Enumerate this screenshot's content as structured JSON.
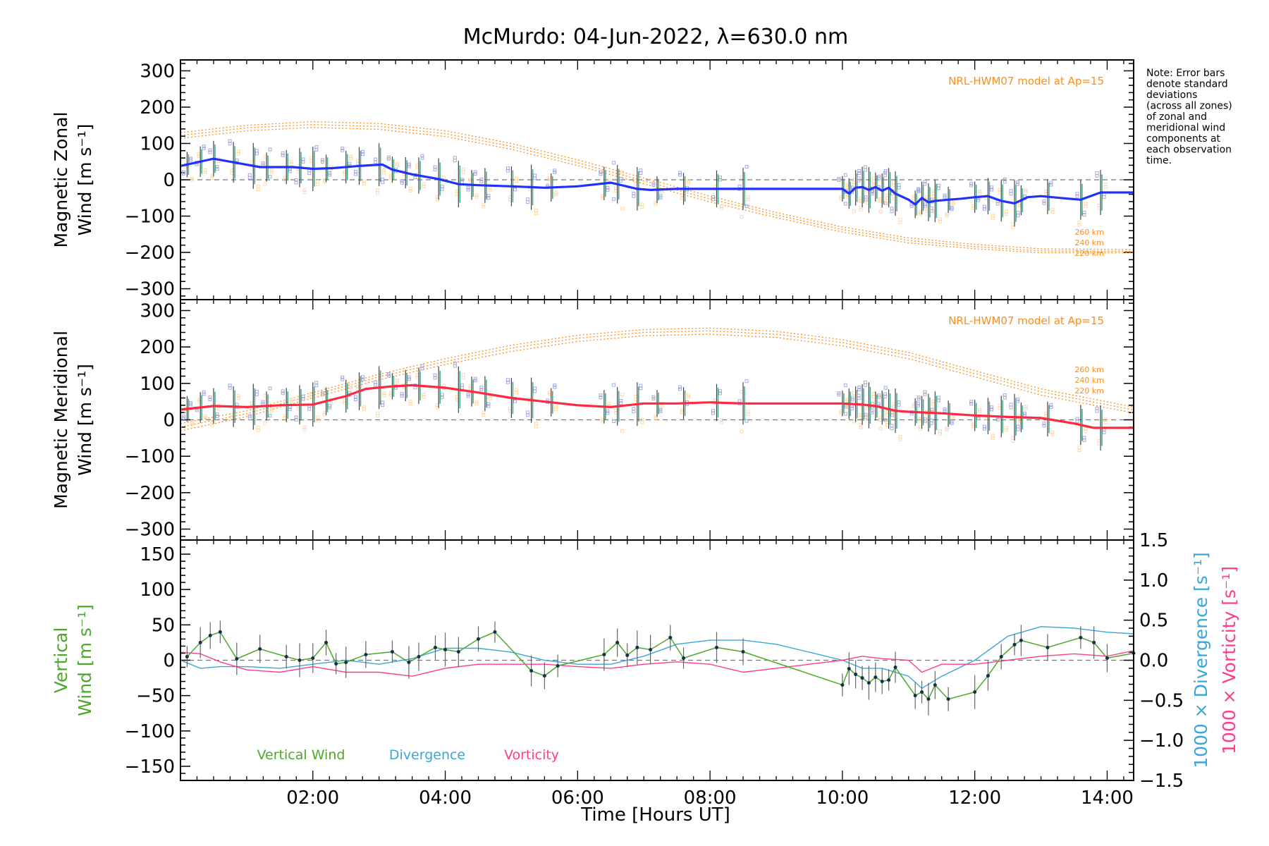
{
  "title": "McMurdo: 04-Jun-2022, λ=630.0 nm",
  "xaxis": {
    "label": "Time [Hours UT]",
    "ticks": [
      {
        "h": 2,
        "label": "02:00"
      },
      {
        "h": 4,
        "label": "04:00"
      },
      {
        "h": 6,
        "label": "06:00"
      },
      {
        "h": 8,
        "label": "08:00"
      },
      {
        "h": 10,
        "label": "10:00"
      },
      {
        "h": 12,
        "label": "12:00"
      },
      {
        "h": 14,
        "label": "14:00"
      }
    ]
  },
  "note": [
    "Note: Error bars",
    "denote standard",
    "deviations",
    "(across all zones)",
    "of zonal and",
    "meridional wind",
    "components at",
    "each observation",
    "time."
  ],
  "colors": {
    "zonal": "#2030ff",
    "meridional": "#ff2840",
    "model": "#ff8c1a",
    "zone_points": "#a8a8dc",
    "light_points": "#ffd9a8",
    "vertical": "#4ca82a",
    "divergence": "#3aa6d8",
    "vorticity": "#ff3c8c"
  },
  "chart_data": [
    {
      "type": "line",
      "panel": "zonal",
      "ylabel_lines": [
        "Magnetic Zonal",
        "Wind [m s⁻¹]"
      ],
      "ylim": [
        -330,
        330
      ],
      "xlim": [
        0,
        14.4
      ],
      "yticks": [
        "300",
        "200",
        "100",
        "0",
        "−100",
        "−200",
        "−300"
      ],
      "model_label": "NRL-HWM07 model at Ap=15",
      "model_altitudes": [
        "260 km",
        "240 km",
        "220 km"
      ],
      "series": [
        {
          "role": "mean",
          "x": [
            0,
            0.5,
            1.2,
            1.7,
            2.0,
            2.3,
            2.7,
            3.05,
            3.2,
            3.5,
            3.9,
            4.2,
            4.5,
            5.0,
            5.5,
            6.0,
            6.5,
            6.9,
            7.1,
            7.5,
            8.0,
            8.5,
            9.0,
            9.5,
            10.0,
            10.1,
            10.2,
            10.3,
            10.4,
            10.5,
            10.6,
            10.7,
            10.8,
            11.0,
            11.1,
            11.2,
            11.3,
            11.4,
            11.6,
            11.8,
            12.0,
            12.2,
            12.4,
            12.6,
            12.8,
            13.0,
            13.3,
            13.6,
            13.9,
            14.4
          ],
          "values": [
            38,
            58,
            35,
            35,
            30,
            32,
            38,
            42,
            28,
            15,
            2,
            -12,
            -15,
            -18,
            -22,
            -18,
            -8,
            -25,
            -28,
            -25,
            -25,
            -25,
            -25,
            -25,
            -25,
            -38,
            -22,
            -20,
            -28,
            -20,
            -30,
            -22,
            -38,
            -55,
            -68,
            -50,
            -62,
            -58,
            -55,
            -52,
            -48,
            -45,
            -58,
            -65,
            -48,
            -45,
            -50,
            -55,
            -35,
            -35
          ]
        },
        {
          "role": "model",
          "x": [
            0,
            1,
            2,
            3,
            4,
            5,
            6,
            7,
            8,
            9,
            10,
            11,
            12,
            13,
            14.4
          ],
          "values": [
            130,
            150,
            160,
            155,
            135,
            100,
            55,
            5,
            -45,
            -90,
            -130,
            -160,
            -178,
            -190,
            -192
          ]
        },
        {
          "role": "model",
          "x": [
            0,
            1,
            2,
            3,
            4,
            5,
            6,
            7,
            8,
            9,
            10,
            11,
            12,
            13,
            14.4
          ],
          "values": [
            122,
            143,
            152,
            147,
            127,
            92,
            47,
            -3,
            -53,
            -97,
            -137,
            -167,
            -184,
            -196,
            -197
          ]
        },
        {
          "role": "model",
          "x": [
            0,
            1,
            2,
            3,
            4,
            5,
            6,
            7,
            8,
            9,
            10,
            11,
            12,
            13,
            14.4
          ],
          "values": [
            114,
            135,
            144,
            139,
            119,
            84,
            39,
            -11,
            -61,
            -104,
            -144,
            -174,
            -190,
            -201,
            -201
          ]
        }
      ],
      "obs_times": [
        0.1,
        0.3,
        0.5,
        0.8,
        1.1,
        1.3,
        1.6,
        1.8,
        2.0,
        2.2,
        2.5,
        2.7,
        3.0,
        3.2,
        3.4,
        3.6,
        3.9,
        4.2,
        4.4,
        4.6,
        5.0,
        5.3,
        5.6,
        6.4,
        6.6,
        6.9,
        7.2,
        7.6,
        8.1,
        8.5,
        10.0,
        10.1,
        10.2,
        10.3,
        10.4,
        10.5,
        10.6,
        10.7,
        10.8,
        11.1,
        11.2,
        11.3,
        11.4,
        11.6,
        12.0,
        12.2,
        12.4,
        12.6,
        12.7,
        13.1,
        13.6,
        13.9
      ]
    },
    {
      "type": "line",
      "panel": "meridional",
      "ylabel_lines": [
        "Magnetic Meridional",
        "Wind [m s⁻¹]"
      ],
      "ylim": [
        -330,
        330
      ],
      "xlim": [
        0,
        14.4
      ],
      "yticks": [
        "300",
        "200",
        "100",
        "0",
        "−100",
        "−200",
        "−300"
      ],
      "model_label": "NRL-HWM07 model at Ap=15",
      "model_altitudes": [
        "260 km",
        "240 km",
        "220 km"
      ],
      "series": [
        {
          "role": "mean",
          "x": [
            0,
            0.5,
            1.0,
            1.5,
            2.0,
            2.5,
            2.8,
            3.2,
            3.5,
            4.0,
            4.5,
            5.0,
            5.5,
            6.0,
            6.5,
            7.0,
            7.5,
            8.0,
            8.5,
            9.0,
            9.5,
            10.0,
            10.3,
            10.5,
            10.8,
            11.0,
            11.5,
            12.0,
            12.5,
            13.0,
            13.5,
            13.8,
            14.4
          ],
          "values": [
            28,
            38,
            35,
            40,
            42,
            65,
            85,
            92,
            95,
            88,
            75,
            60,
            50,
            40,
            35,
            45,
            45,
            48,
            45,
            45,
            45,
            45,
            42,
            38,
            25,
            22,
            18,
            12,
            8,
            5,
            -10,
            -22,
            -22
          ]
        },
        {
          "role": "model",
          "x": [
            0,
            1,
            2,
            3,
            4,
            5,
            6,
            7,
            8,
            9,
            10,
            11,
            12,
            13,
            14.4
          ],
          "values": [
            -10,
            25,
            75,
            125,
            168,
            205,
            232,
            248,
            252,
            243,
            220,
            185,
            135,
            85,
            35
          ]
        },
        {
          "role": "model",
          "x": [
            0,
            1,
            2,
            3,
            4,
            5,
            6,
            7,
            8,
            9,
            10,
            11,
            12,
            13,
            14.4
          ],
          "values": [
            -20,
            17,
            68,
            118,
            160,
            197,
            224,
            240,
            244,
            235,
            212,
            177,
            127,
            77,
            27
          ]
        },
        {
          "role": "model",
          "x": [
            0,
            1,
            2,
            3,
            4,
            5,
            6,
            7,
            8,
            9,
            10,
            11,
            12,
            13,
            14.4
          ],
          "values": [
            -30,
            9,
            60,
            110,
            152,
            188,
            215,
            231,
            235,
            226,
            203,
            168,
            118,
            68,
            19
          ]
        }
      ],
      "obs_times": [
        0.1,
        0.3,
        0.5,
        0.8,
        1.1,
        1.3,
        1.6,
        1.8,
        2.0,
        2.2,
        2.5,
        2.7,
        3.0,
        3.2,
        3.4,
        3.6,
        3.9,
        4.2,
        4.4,
        4.6,
        5.0,
        5.3,
        5.6,
        6.4,
        6.6,
        6.9,
        7.2,
        7.6,
        8.1,
        8.5,
        10.0,
        10.1,
        10.2,
        10.3,
        10.4,
        10.5,
        10.6,
        10.7,
        10.8,
        11.1,
        11.2,
        11.3,
        11.4,
        11.6,
        12.0,
        12.2,
        12.4,
        12.6,
        12.7,
        13.1,
        13.6,
        13.9
      ]
    },
    {
      "type": "line",
      "panel": "vertical",
      "ylabel_lines": [
        "Vertical",
        "Wind [m s⁻¹]"
      ],
      "ylim": [
        -170,
        170
      ],
      "xlim": [
        0,
        14.4
      ],
      "yticks": [
        "150",
        "100",
        "50",
        "0",
        "−50",
        "−100",
        "−150"
      ],
      "right_axis": {
        "ylim": [
          -1.5,
          1.5
        ],
        "ticks": [
          "1.5",
          "1.0",
          "0.5",
          "0.0",
          "−0.5",
          "−1.0",
          "−1.5"
        ],
        "label_divergence": "1000 × Divergence [s⁻¹]",
        "label_vorticity": "1000 × Vorticity [s⁻¹]"
      },
      "legend": [
        "Vertical Wind",
        "Divergence",
        "Vorticity"
      ],
      "series": [
        {
          "name": "Vertical Wind",
          "x": [
            0.1,
            0.3,
            0.45,
            0.6,
            0.85,
            1.2,
            1.6,
            1.8,
            2.0,
            2.2,
            2.35,
            2.5,
            2.8,
            3.2,
            3.45,
            3.6,
            3.85,
            4.0,
            4.2,
            4.5,
            4.75,
            5.3,
            5.5,
            5.7,
            6.4,
            6.6,
            6.75,
            6.9,
            7.1,
            7.4,
            7.6,
            8.1,
            8.5,
            10.0,
            10.1,
            10.2,
            10.3,
            10.4,
            10.5,
            10.6,
            10.7,
            10.8,
            11.1,
            11.2,
            11.3,
            11.4,
            11.6,
            12.0,
            12.2,
            12.4,
            12.6,
            12.7,
            13.1,
            13.6,
            13.8,
            14.0,
            14.4
          ],
          "values": [
            5,
            25,
            35,
            40,
            2,
            16,
            5,
            0,
            3,
            25,
            -5,
            -3,
            8,
            12,
            -3,
            5,
            18,
            15,
            12,
            30,
            40,
            -15,
            -22,
            -8,
            8,
            25,
            7,
            18,
            15,
            32,
            3,
            18,
            12,
            -35,
            -12,
            -20,
            -25,
            -32,
            -24,
            -30,
            -28,
            -10,
            -50,
            -45,
            -55,
            -35,
            -55,
            -45,
            -22,
            5,
            22,
            28,
            18,
            32,
            25,
            3,
            10
          ]
        },
        {
          "name": "Divergence",
          "x": [
            0,
            0.3,
            0.6,
            1.0,
            1.5,
            2.0,
            2.5,
            3.0,
            3.5,
            4.0,
            4.5,
            5.0,
            5.5,
            6.0,
            6.5,
            7.0,
            7.5,
            8.0,
            8.5,
            9.0,
            9.5,
            10.0,
            10.3,
            10.6,
            11.0,
            11.2,
            11.5,
            12.0,
            12.5,
            13.0,
            13.5,
            14.0,
            14.4
          ],
          "values": [
            0.0,
            -0.1,
            -0.08,
            -0.08,
            -0.1,
            -0.05,
            0.0,
            -0.05,
            0.02,
            0.15,
            0.15,
            0.1,
            0.0,
            -0.05,
            -0.05,
            0.05,
            0.2,
            0.25,
            0.25,
            0.2,
            0.1,
            0.0,
            -0.1,
            -0.1,
            -0.2,
            -0.35,
            -0.2,
            0.0,
            0.3,
            0.42,
            0.4,
            0.35,
            0.33
          ]
        },
        {
          "name": "Vorticity",
          "x": [
            0,
            0.3,
            0.6,
            1.0,
            1.5,
            2.0,
            2.5,
            3.0,
            3.5,
            4.0,
            4.5,
            5.0,
            5.5,
            6.0,
            6.5,
            7.0,
            7.5,
            8.0,
            8.5,
            9.0,
            9.5,
            10.0,
            10.3,
            10.6,
            11.0,
            11.2,
            11.5,
            12.0,
            12.5,
            13.0,
            13.5,
            14.0,
            14.4
          ],
          "values": [
            0.1,
            0.08,
            -0.02,
            -0.12,
            -0.15,
            -0.08,
            -0.15,
            -0.15,
            -0.2,
            -0.1,
            -0.05,
            -0.05,
            -0.05,
            -0.08,
            -0.1,
            -0.05,
            -0.02,
            -0.05,
            -0.15,
            -0.1,
            -0.05,
            0.0,
            0.05,
            0.02,
            0.0,
            -0.15,
            -0.05,
            -0.05,
            0.0,
            0.05,
            0.08,
            0.05,
            0.12
          ]
        }
      ]
    }
  ]
}
